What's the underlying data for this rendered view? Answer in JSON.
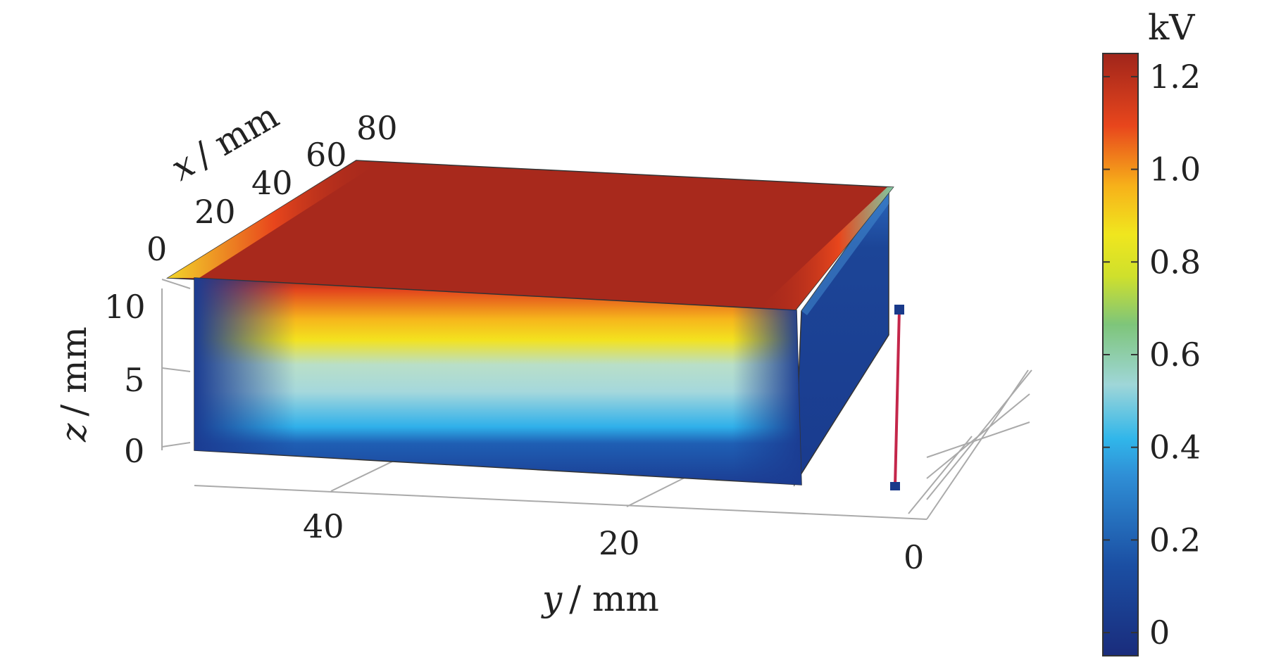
{
  "chart_data": {
    "type": "heatmap",
    "title": "",
    "quantity_unit": "kV",
    "axes": {
      "x": {
        "label_var": "x",
        "label_unit": "/ mm",
        "ticks": [
          "0",
          "20",
          "40",
          "60",
          "80"
        ]
      },
      "y": {
        "label_var": "y",
        "label_unit": "/ mm",
        "ticks": [
          "40",
          "20",
          "0"
        ]
      },
      "z": {
        "label_var": "z",
        "label_unit": "/ mm",
        "ticks": [
          "0",
          "5",
          "10"
        ]
      }
    },
    "colorbar": {
      "ticks": [
        "0",
        "0.2",
        "0.4",
        "0.6",
        "0.8",
        "1.0",
        "1.2"
      ],
      "range": [
        -0.05,
        1.25
      ],
      "colormap": [
        "#1a2c7c",
        "#1b4fa3",
        "#30a6e6",
        "#9fd6d8",
        "#7ec57a",
        "#f0e61e",
        "#f7b11a",
        "#e8461c",
        "#a0251b"
      ]
    },
    "surfaces": {
      "top_face": {
        "value_kV": 1.2,
        "color": "#a8291c"
      },
      "front_face": {
        "top_value_kV": 1.2,
        "bottom_value_kV": 0.0
      },
      "side_face": {
        "value_kV": 0.05,
        "color": "#1c3f92"
      }
    },
    "marker_line_color": "#c4264a",
    "marker_end_color": "#1a3a8a"
  }
}
